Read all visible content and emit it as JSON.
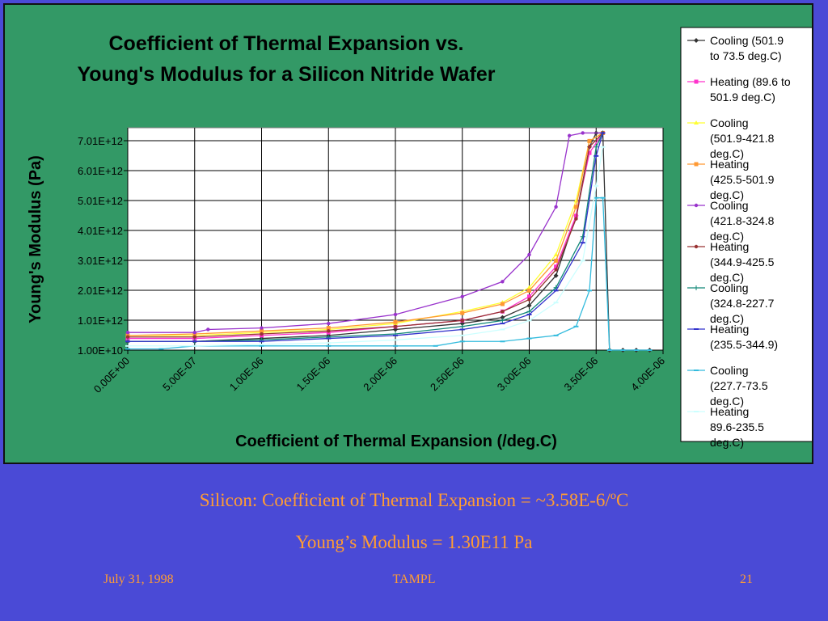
{
  "chart_data": {
    "type": "line",
    "title": "Coefficient of Thermal Expansion vs. Young's Modulus for a Silicon Nitride Wafer",
    "title_lines": [
      "Coefficient of Thermal Expansion vs.",
      "Young's Modulus for a Silicon Nitride Wafer"
    ],
    "xlabel": "Coefficient of Thermal Expansion (/deg.C)",
    "ylabel": "Young's Modulus (Pa)",
    "xlim": [
      0,
      4e-06
    ],
    "xticks": [
      "0.00E+00",
      "5.00E-07",
      "1.00E-06",
      "1.50E-06",
      "2.00E-06",
      "2.50E-06",
      "3.00E-06",
      "3.50E-06",
      "4.00E-06"
    ],
    "yticks": [
      "1.00E+10",
      "1.01E+12",
      "2.01E+12",
      "3.01E+12",
      "4.01E+12",
      "5.01E+12",
      "6.01E+12",
      "7.01E+12"
    ],
    "yvals": [
      10000000000.0,
      1010000000000.0,
      2010000000000.0,
      3010000000000.0,
      4010000000000.0,
      5010000000000.0,
      6010000000000.0,
      7010000000000.0
    ],
    "grid": true,
    "legend_position": "right",
    "series": [
      {
        "name": "Cooling (501.9 to 73.5 deg.C)",
        "color": "#333333",
        "marker": "diamond",
        "x": [
          0,
          5e-07,
          1e-06,
          1.5e-06,
          2e-06,
          2.5e-06,
          2.8e-06,
          3e-06,
          3.2e-06,
          3.35e-06,
          3.45e-06,
          3.5e-06,
          3.55e-06,
          3.6e-06,
          3.7e-06,
          3.8e-06,
          3.9e-06
        ],
        "y": [
          300000000000.0,
          300000000000.0,
          400000000000.0,
          500000000000.0,
          700000000000.0,
          900000000000.0,
          1100000000000.0,
          1500000000000.0,
          2500000000000.0,
          4500000000000.0,
          6800000000000.0,
          7300000000000.0,
          7300000000000.0,
          0.0,
          0.0,
          0.0,
          0.0
        ]
      },
      {
        "name": "Heating (89.6 to 501.9 deg.C)",
        "color": "#ff33cc",
        "marker": "square",
        "x": [
          0,
          5e-07,
          1e-06,
          1.5e-06,
          2e-06,
          2.5e-06,
          2.8e-06,
          3e-06,
          3.2e-06,
          3.35e-06,
          3.45e-06,
          3.55e-06
        ],
        "y": [
          400000000000.0,
          400000000000.0,
          500000000000.0,
          600000000000.0,
          800000000000.0,
          1000000000000.0,
          1300000000000.0,
          1800000000000.0,
          2800000000000.0,
          4500000000000.0,
          6600000000000.0,
          7300000000000.0
        ]
      },
      {
        "name": "Cooling (501.9-421.8 deg.C)",
        "color": "#ffff33",
        "marker": "triangle",
        "x": [
          0,
          5e-07,
          1e-06,
          1.5e-06,
          2e-06,
          2.5e-06,
          2.8e-06,
          3e-06,
          3.2e-06,
          3.35e-06,
          3.45e-06,
          3.55e-06
        ],
        "y": [
          500000000000.0,
          500000000000.0,
          600000000000.0,
          700000000000.0,
          900000000000.0,
          1300000000000.0,
          1600000000000.0,
          2100000000000.0,
          3200000000000.0,
          5000000000000.0,
          7000000000000.0,
          7300000000000.0
        ]
      },
      {
        "name": "Heating (425.5-501.9 deg.C)",
        "color": "#ff9933",
        "marker": "square",
        "x": [
          0,
          5e-07,
          1e-06,
          1.5e-06,
          2e-06,
          2.5e-06,
          2.8e-06,
          3e-06,
          3.2e-06,
          3.35e-06,
          3.45e-06,
          3.55e-06
        ],
        "y": [
          500000000000.0,
          550000000000.0,
          650000000000.0,
          750000000000.0,
          950000000000.0,
          1250000000000.0,
          1550000000000.0,
          2000000000000.0,
          3000000000000.0,
          4800000000000.0,
          7000000000000.0,
          7300000000000.0
        ]
      },
      {
        "name": "Cooling (421.8-324.8 deg.C)",
        "color": "#9933cc",
        "marker": "circle",
        "x": [
          0,
          5e-07,
          6e-07,
          1e-06,
          1.5e-06,
          2e-06,
          2.5e-06,
          2.8e-06,
          3e-06,
          3.2e-06,
          3.3e-06,
          3.4e-06,
          3.55e-06
        ],
        "y": [
          600000000000.0,
          600000000000.0,
          700000000000.0,
          750000000000.0,
          900000000000.0,
          1200000000000.0,
          1800000000000.0,
          2300000000000.0,
          3200000000000.0,
          4800000000000.0,
          7200000000000.0,
          7300000000000.0,
          7300000000000.0
        ]
      },
      {
        "name": "Heating (344.9-425.5 deg.C)",
        "color": "#993333",
        "marker": "circle",
        "x": [
          0,
          5e-07,
          1e-06,
          1.5e-06,
          2e-06,
          2.5e-06,
          2.8e-06,
          3e-06,
          3.2e-06,
          3.35e-06,
          3.45e-06,
          3.55e-06
        ],
        "y": [
          450000000000.0,
          450000000000.0,
          550000000000.0,
          650000000000.0,
          800000000000.0,
          1000000000000.0,
          1300000000000.0,
          1700000000000.0,
          2700000000000.0,
          4400000000000.0,
          6800000000000.0,
          7300000000000.0
        ]
      },
      {
        "name": "Cooling (324.8-227.7 deg.C)",
        "color": "#118877",
        "marker": "plus",
        "x": [
          0,
          5e-07,
          1e-06,
          1.5e-06,
          2e-06,
          2.5e-06,
          2.8e-06,
          3e-06,
          3.2e-06,
          3.4e-06,
          3.5e-06,
          3.55e-06
        ],
        "y": [
          300000000000.0,
          300000000000.0,
          350000000000.0,
          450000000000.0,
          550000000000.0,
          800000000000.0,
          1000000000000.0,
          1300000000000.0,
          2100000000000.0,
          3800000000000.0,
          6800000000000.0,
          7300000000000.0
        ]
      },
      {
        "name": "Heating (235.5-344.9)",
        "color": "#3333cc",
        "marker": "dash",
        "x": [
          0,
          5e-07,
          1e-06,
          1.5e-06,
          2e-06,
          2.5e-06,
          2.8e-06,
          3e-06,
          3.2e-06,
          3.4e-06,
          3.5e-06,
          3.55e-06
        ],
        "y": [
          300000000000.0,
          300000000000.0,
          300000000000.0,
          400000000000.0,
          500000000000.0,
          700000000000.0,
          900000000000.0,
          1200000000000.0,
          2000000000000.0,
          3600000000000.0,
          6500000000000.0,
          7300000000000.0
        ]
      },
      {
        "name": "Cooling (227.7-73.5 deg.C)",
        "color": "#33bbdd",
        "marker": "dash",
        "x": [
          0,
          2.5e-07,
          5e-07,
          1e-06,
          1.5e-06,
          2e-06,
          2.3e-06,
          2.5e-06,
          2.8e-06,
          3e-06,
          3.2e-06,
          3.35e-06,
          3.45e-06,
          3.5e-06,
          3.55e-06,
          3.6e-06,
          3.7e-06,
          3.8e-06,
          3.9e-06
        ],
        "y": [
          50000000000.0,
          50000000000.0,
          150000000000.0,
          150000000000.0,
          150000000000.0,
          150000000000.0,
          150000000000.0,
          300000000000.0,
          300000000000.0,
          400000000000.0,
          500000000000.0,
          800000000000.0,
          2000000000000.0,
          5100000000000.0,
          5100000000000.0,
          0.0,
          0.0,
          0.0,
          0.0
        ]
      },
      {
        "name": "Heating 89.6-235.5 deg.C)",
        "color": "#ccffff",
        "marker": "dash",
        "x": [
          0,
          5e-07,
          1e-06,
          1.5e-06,
          2e-06,
          2.5e-06,
          2.8e-06,
          3e-06,
          3.2e-06,
          3.4e-06,
          3.5e-06,
          3.55e-06
        ],
        "y": [
          150000000000.0,
          150000000000.0,
          200000000000.0,
          250000000000.0,
          350000000000.0,
          500000000000.0,
          700000000000.0,
          1000000000000.0,
          1600000000000.0,
          3000000000000.0,
          5500000000000.0,
          6800000000000.0
        ]
      }
    ]
  },
  "slide": {
    "line1": "Silicon: Coefficient of Thermal Expansion = ~3.58E-6/ºC",
    "line2": "Young’s Modulus = 1.30E11 Pa",
    "footer_date": "July 31, 1998",
    "footer_center": "TAMPL",
    "footer_page": "21"
  }
}
